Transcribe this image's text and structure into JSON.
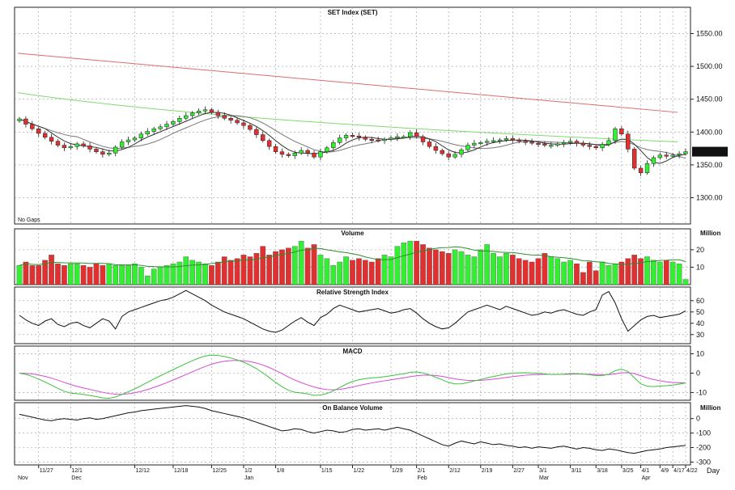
{
  "chart_data": [
    {
      "type": "candlestick",
      "title": "SET Index (SET)",
      "note": "No Gaps",
      "last_value_label": "1370.12",
      "ylim": [
        1260,
        1590
      ],
      "y_ticks": [
        1300,
        1350,
        1400,
        1450,
        1500,
        1550
      ],
      "y_tick_labels": [
        "1300.00",
        "1350.00",
        "1400.00",
        "1450.00",
        "1500.00",
        "1550.00"
      ],
      "close": [
        1420,
        1412,
        1405,
        1398,
        1392,
        1386,
        1380,
        1376,
        1378,
        1382,
        1379,
        1374,
        1370,
        1366,
        1368,
        1377,
        1385,
        1388,
        1391,
        1397,
        1401,
        1405,
        1408,
        1412,
        1416,
        1421,
        1425,
        1429,
        1432,
        1434,
        1430,
        1425,
        1421,
        1418,
        1414,
        1410,
        1404,
        1396,
        1387,
        1378,
        1370,
        1366,
        1364,
        1368,
        1372,
        1368,
        1362,
        1370,
        1376,
        1384,
        1391,
        1395,
        1394,
        1392,
        1389,
        1388,
        1387,
        1389,
        1391,
        1393,
        1393,
        1399,
        1393,
        1385,
        1378,
        1372,
        1367,
        1362,
        1366,
        1373,
        1380,
        1383,
        1384,
        1386,
        1387,
        1388,
        1390,
        1388,
        1386,
        1385,
        1383,
        1382,
        1380,
        1380,
        1382,
        1384,
        1386,
        1383,
        1380,
        1378,
        1376,
        1381,
        1387,
        1405,
        1397,
        1374,
        1345,
        1338,
        1352,
        1361,
        1365,
        1364,
        1365,
        1367,
        1370.12
      ],
      "series": [
        {
          "name": "MA short",
          "color": "#333333"
        },
        {
          "name": "MA mid",
          "color": "#777777"
        },
        {
          "name": "MA long",
          "color": "#7ddc6a"
        },
        {
          "name": "MA longest",
          "color": "#e06a6a"
        }
      ],
      "ma_long_start": 1460,
      "ma_long_end": 1385,
      "ma_longest_start": 1520,
      "ma_longest_end": 1430,
      "grid": true
    },
    {
      "type": "bar",
      "title": "Volume",
      "unit_label": "Million",
      "ylim": [
        0,
        32
      ],
      "y_ticks": [
        10,
        20
      ],
      "y_tick_labels": [
        "10",
        "20"
      ],
      "values": [
        11,
        13,
        11,
        11,
        14,
        17,
        12,
        11,
        12,
        12,
        11,
        10,
        12,
        11,
        12,
        11,
        11,
        11,
        12,
        10,
        5,
        9,
        10,
        11,
        12,
        13,
        16,
        14,
        13,
        12,
        11,
        13,
        16,
        14,
        15,
        17,
        16,
        18,
        22,
        17,
        19,
        20,
        21,
        22,
        25,
        21,
        23,
        17,
        15,
        11,
        13,
        16,
        14,
        15,
        14,
        13,
        15,
        17,
        16,
        22,
        24,
        25,
        25,
        23,
        21,
        20,
        19,
        18,
        20,
        19,
        17,
        16,
        20,
        23,
        18,
        16,
        18,
        17,
        15,
        14,
        13,
        15,
        18,
        16,
        15,
        13,
        14,
        12,
        7,
        13,
        8,
        13,
        11,
        12,
        13,
        15,
        17,
        15,
        16,
        14,
        13,
        14,
        13,
        12,
        3
      ],
      "ma_color": "#2a8f2a",
      "grid": true
    },
    {
      "type": "line",
      "title": "Relative Strength Index",
      "ylim": [
        22,
        72
      ],
      "y_ticks": [
        30,
        40,
        50,
        60
      ],
      "y_tick_labels": [
        "30",
        "40",
        "50",
        "60"
      ],
      "values": [
        47,
        43,
        40,
        38,
        42,
        44,
        39,
        37,
        40,
        41,
        38,
        36,
        40,
        44,
        42,
        35,
        46,
        50,
        52,
        54,
        56,
        58,
        60,
        61,
        63,
        66,
        69,
        66,
        63,
        60,
        56,
        53,
        50,
        48,
        46,
        44,
        41,
        38,
        35,
        33,
        32,
        34,
        38,
        42,
        45,
        41,
        38,
        45,
        48,
        53,
        56,
        54,
        52,
        50,
        51,
        52,
        53,
        51,
        49,
        50,
        52,
        53,
        49,
        44,
        40,
        37,
        35,
        36,
        40,
        45,
        50,
        52,
        54,
        56,
        54,
        52,
        55,
        53,
        51,
        49,
        47,
        48,
        50,
        49,
        51,
        52,
        50,
        48,
        47,
        50,
        52,
        65,
        68,
        58,
        44,
        33,
        38,
        43,
        46,
        47,
        45,
        46,
        47,
        48,
        51
      ],
      "color": "#111111",
      "grid": true
    },
    {
      "type": "line",
      "title": "MACD",
      "ylim": [
        -14,
        14
      ],
      "y_ticks": [
        -10,
        0,
        10
      ],
      "y_tick_labels": [
        "-10",
        "0",
        "10"
      ],
      "series": [
        {
          "name": "MACD",
          "color": "#3cc23c"
        },
        {
          "name": "Signal",
          "color": "#d64bd6"
        }
      ],
      "grid": true
    },
    {
      "type": "line",
      "title": "On Balance Volume",
      "unit_label": "Million",
      "ylim": [
        -320,
        110
      ],
      "y_ticks": [
        -300,
        -200,
        -100,
        0
      ],
      "y_tick_labels": [
        "-300",
        "-200",
        "-100",
        "0"
      ],
      "values": [
        30,
        20,
        10,
        0,
        -10,
        -15,
        -5,
        0,
        -5,
        -10,
        0,
        5,
        -5,
        0,
        10,
        20,
        30,
        40,
        45,
        55,
        60,
        65,
        70,
        75,
        80,
        85,
        90,
        85,
        80,
        70,
        55,
        45,
        35,
        25,
        15,
        5,
        -10,
        -25,
        -40,
        -55,
        -70,
        -85,
        -80,
        -70,
        -75,
        -90,
        -100,
        -90,
        -80,
        -85,
        -95,
        -90,
        -75,
        -70,
        -80,
        -75,
        -70,
        -80,
        -70,
        -60,
        -70,
        -80,
        -100,
        -120,
        -140,
        -160,
        -180,
        -190,
        -170,
        -155,
        -165,
        -175,
        -160,
        -170,
        -180,
        -175,
        -185,
        -190,
        -200,
        -195,
        -205,
        -195,
        -200,
        -205,
        -195,
        -190,
        -200,
        -210,
        -200,
        -205,
        -215,
        -220,
        -210,
        -215,
        -225,
        -235,
        -240,
        -230,
        -220,
        -215,
        -210,
        -200,
        -195,
        -190,
        -185
      ],
      "color": "#111111",
      "grid": true
    }
  ],
  "x_axis": {
    "unit_label": "Day",
    "ticks": [
      {
        "i": 3,
        "label": "11/27",
        "month": ""
      },
      {
        "i": 8,
        "label": "12/1",
        "month": "Dec"
      },
      {
        "i": 18,
        "label": "12/12",
        "month": ""
      },
      {
        "i": 24,
        "label": "12/18",
        "month": ""
      },
      {
        "i": 30,
        "label": "12/25",
        "month": ""
      },
      {
        "i": 35,
        "label": "1/2",
        "month": "Jan"
      },
      {
        "i": 40,
        "label": "1/8",
        "month": ""
      },
      {
        "i": 47,
        "label": "1/15",
        "month": ""
      },
      {
        "i": 52,
        "label": "1/22",
        "month": ""
      },
      {
        "i": 58,
        "label": "1/29",
        "month": ""
      },
      {
        "i": 62,
        "label": "2/1",
        "month": "Feb"
      },
      {
        "i": 67,
        "label": "2/12",
        "month": ""
      },
      {
        "i": 72,
        "label": "2/19",
        "month": ""
      },
      {
        "i": 77,
        "label": "2/27",
        "month": ""
      },
      {
        "i": 81,
        "label": "3/1",
        "month": "Mar"
      },
      {
        "i": 86,
        "label": "3/11",
        "month": ""
      },
      {
        "i": 90,
        "label": "3/18",
        "month": ""
      },
      {
        "i": 94,
        "label": "3/25",
        "month": ""
      },
      {
        "i": 97,
        "label": "4/1",
        "month": "Apr"
      },
      {
        "i": 100,
        "label": "4/9",
        "month": ""
      },
      {
        "i": 102,
        "label": "4/17",
        "month": ""
      },
      {
        "i": 104,
        "label": "4/22",
        "month": ""
      }
    ],
    "first_month": "Nov"
  },
  "colors": {
    "up": "#33ee33",
    "down": "#e03030",
    "grid": "#999999"
  }
}
